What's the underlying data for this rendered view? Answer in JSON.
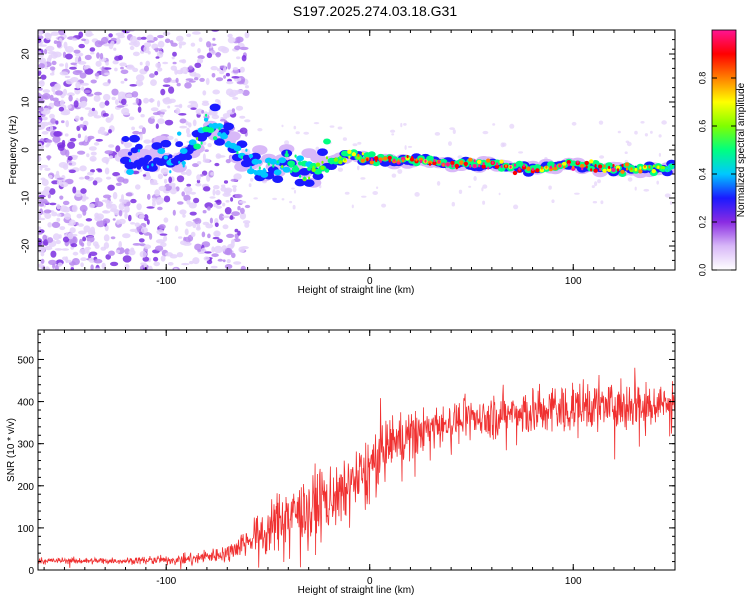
{
  "figure": {
    "title": "S197.2025.274.03.18.G31"
  },
  "chart_data": [
    {
      "type": "heatmap",
      "title": "S197.2025.274.03.18.G31",
      "xlabel": "Height of straight line (km)",
      "ylabel": "Frequency (Hz)",
      "xlim": [
        -163,
        150
      ],
      "ylim": [
        -25,
        25
      ],
      "xticks": [
        -100,
        0,
        100
      ],
      "xtick_labels": [
        "-100",
        "0",
        "100"
      ],
      "yticks": [
        -20,
        -10,
        0,
        10,
        20
      ],
      "ytick_labels": [
        "-20",
        "-10",
        "0",
        "10",
        "20"
      ],
      "colorbar": {
        "label": "Normalized spectral amplitude",
        "range": [
          0,
          1
        ],
        "ticks": [
          0,
          0.2,
          0.4,
          0.6,
          0.8
        ],
        "tick_labels": [
          "0.0",
          "0.2",
          "0.4",
          "0.6",
          "0.8"
        ],
        "colors": [
          "#ffffff",
          "#d8b8f8",
          "#8a2be2",
          "#1a1aff",
          "#00c8ff",
          "#00ff80",
          "#80ff00",
          "#ffff00",
          "#ff8000",
          "#ff0000",
          "#ff1493"
        ]
      },
      "ridge": {
        "x": [
          -163,
          -140,
          -120,
          -100,
          -90,
          -80,
          -70,
          -60,
          -50,
          -40,
          -30,
          -20,
          -10,
          0,
          10,
          20,
          40,
          60,
          80,
          100,
          120,
          150
        ],
        "freq": [
          -2,
          -2,
          -1,
          -2,
          -1,
          5,
          3,
          -3,
          -4,
          -3,
          -4,
          -3,
          -1,
          -2,
          -2,
          -2,
          -3,
          -3,
          -4,
          -3,
          -4,
          -3.5
        ],
        "amplitude": [
          0.25,
          0.3,
          0.35,
          0.35,
          0.4,
          0.5,
          0.45,
          0.4,
          0.45,
          0.5,
          0.55,
          0.6,
          0.7,
          0.85,
          0.9,
          0.95,
          0.95,
          0.95,
          0.9,
          0.95,
          0.95,
          0.5
        ]
      },
      "scatter_noise": {
        "x_range": [
          -163,
          -60
        ],
        "freq_range": [
          -25,
          25
        ]
      }
    },
    {
      "type": "line",
      "xlabel": "Height of straight line (km)",
      "ylabel": "SNR (10 * v/v)",
      "xlim": [
        -163,
        150
      ],
      "ylim": [
        0,
        570
      ],
      "xticks": [
        -100,
        0,
        100
      ],
      "xtick_labels": [
        "-100",
        "0",
        "100"
      ],
      "yticks": [
        0,
        100,
        200,
        300,
        400,
        500
      ],
      "ytick_labels": [
        "0",
        "100",
        "200",
        "300",
        "400",
        "500"
      ],
      "series": [
        {
          "name": "SNR",
          "color": "#f03030",
          "trend_x": [
            -163,
            -120,
            -90,
            -70,
            -60,
            -50,
            -40,
            -30,
            -20,
            -10,
            0,
            10,
            20,
            30,
            50,
            70,
            90,
            110,
            130,
            150
          ],
          "trend_y": [
            22,
            22,
            25,
            40,
            70,
            95,
            130,
            140,
            170,
            190,
            240,
            300,
            320,
            340,
            360,
            370,
            380,
            390,
            395,
            400
          ],
          "noise_y": [
            6,
            6,
            10,
            18,
            30,
            45,
            55,
            60,
            70,
            70,
            70,
            50,
            45,
            40,
            40,
            45,
            50,
            55,
            50,
            45
          ]
        }
      ]
    }
  ]
}
